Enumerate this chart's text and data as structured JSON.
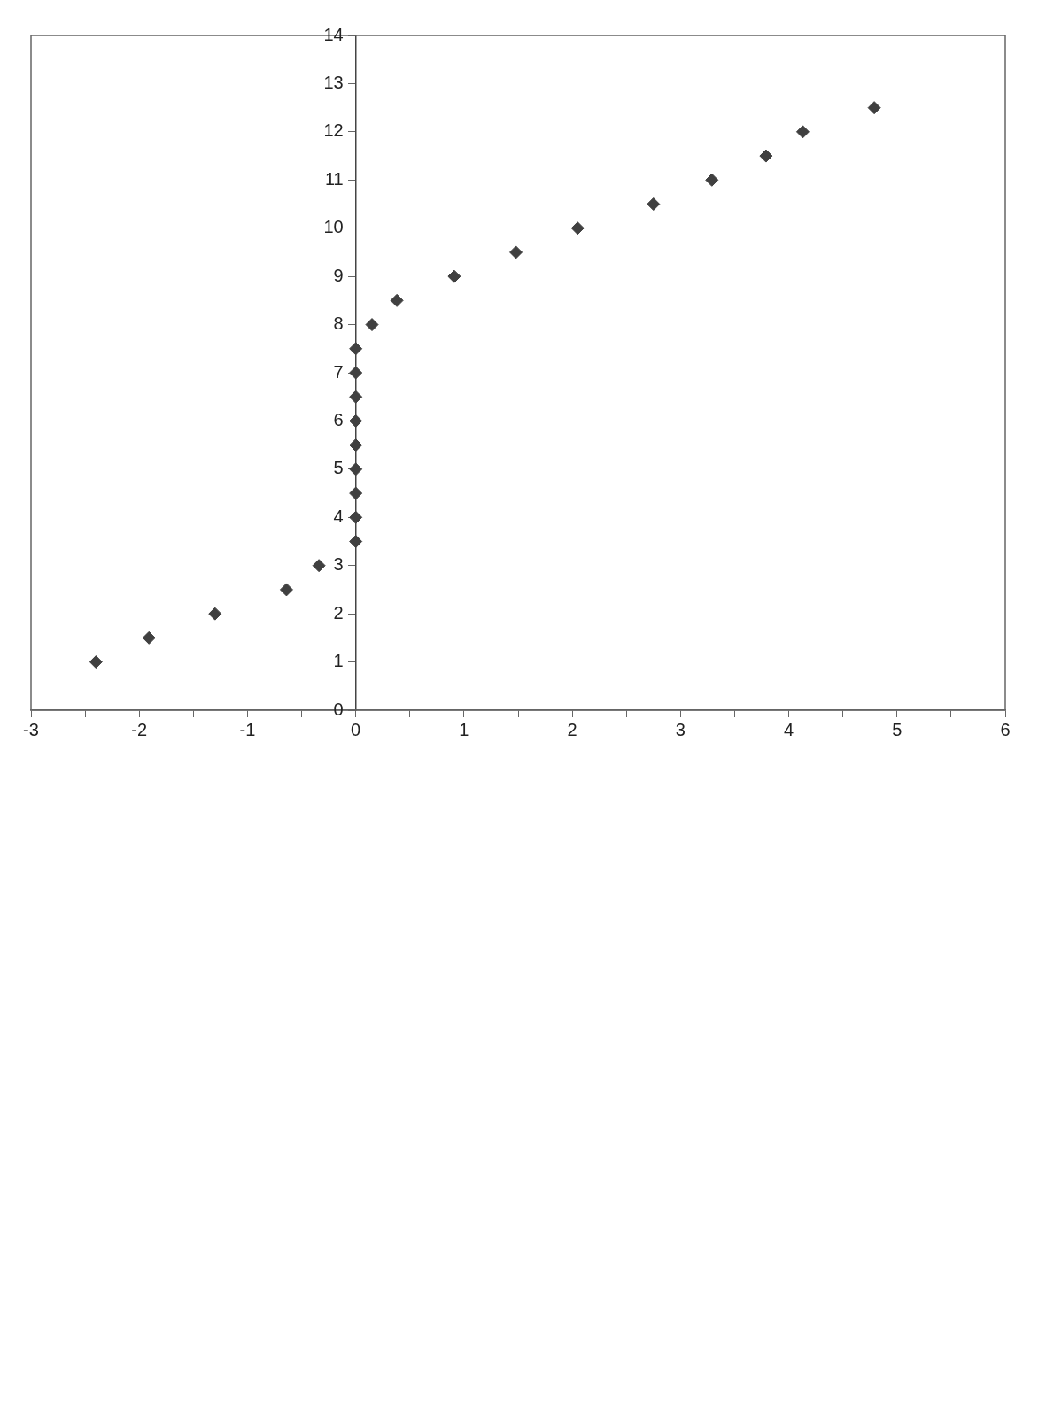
{
  "chart_data": {
    "type": "scatter",
    "marker": "diamond",
    "grid": false,
    "legend": false,
    "xlim": [
      -3,
      6
    ],
    "ylim": [
      0,
      14
    ],
    "xticks": [
      -3,
      {
        "value": -2.5,
        "label": null
      },
      -2,
      {
        "value": -1.5,
        "label": null
      },
      -1,
      {
        "value": -0.5,
        "label": null
      },
      0,
      {
        "value": 0.5,
        "label": null
      },
      1,
      {
        "value": 1.5,
        "label": null
      },
      2,
      {
        "value": 2.5,
        "label": null
      },
      3,
      {
        "value": 3.5,
        "label": null
      },
      4,
      {
        "value": 4.5,
        "label": null
      },
      5,
      {
        "value": 5.5,
        "label": null
      },
      6
    ],
    "yticks": [
      0,
      1,
      2,
      3,
      4,
      5,
      6,
      7,
      8,
      9,
      10,
      11,
      12,
      13,
      14
    ],
    "series": [
      {
        "color": "#404040",
        "x": [
          4.79,
          4.13,
          3.79,
          3.29,
          2.75,
          2.05,
          1.48,
          0.91,
          0.38,
          0.15,
          0,
          0,
          0,
          0,
          0,
          0,
          0,
          0,
          0,
          -0.34,
          -0.64,
          -1.3,
          -1.91,
          -2.4
        ],
        "values": [
          12.5,
          12,
          11.5,
          11,
          10.5,
          10,
          9.5,
          9,
          8.5,
          8,
          7.5,
          7,
          6.5,
          6,
          5.5,
          5,
          4.5,
          4,
          3.5,
          3,
          2.5,
          2,
          1.5,
          1
        ]
      }
    ]
  }
}
